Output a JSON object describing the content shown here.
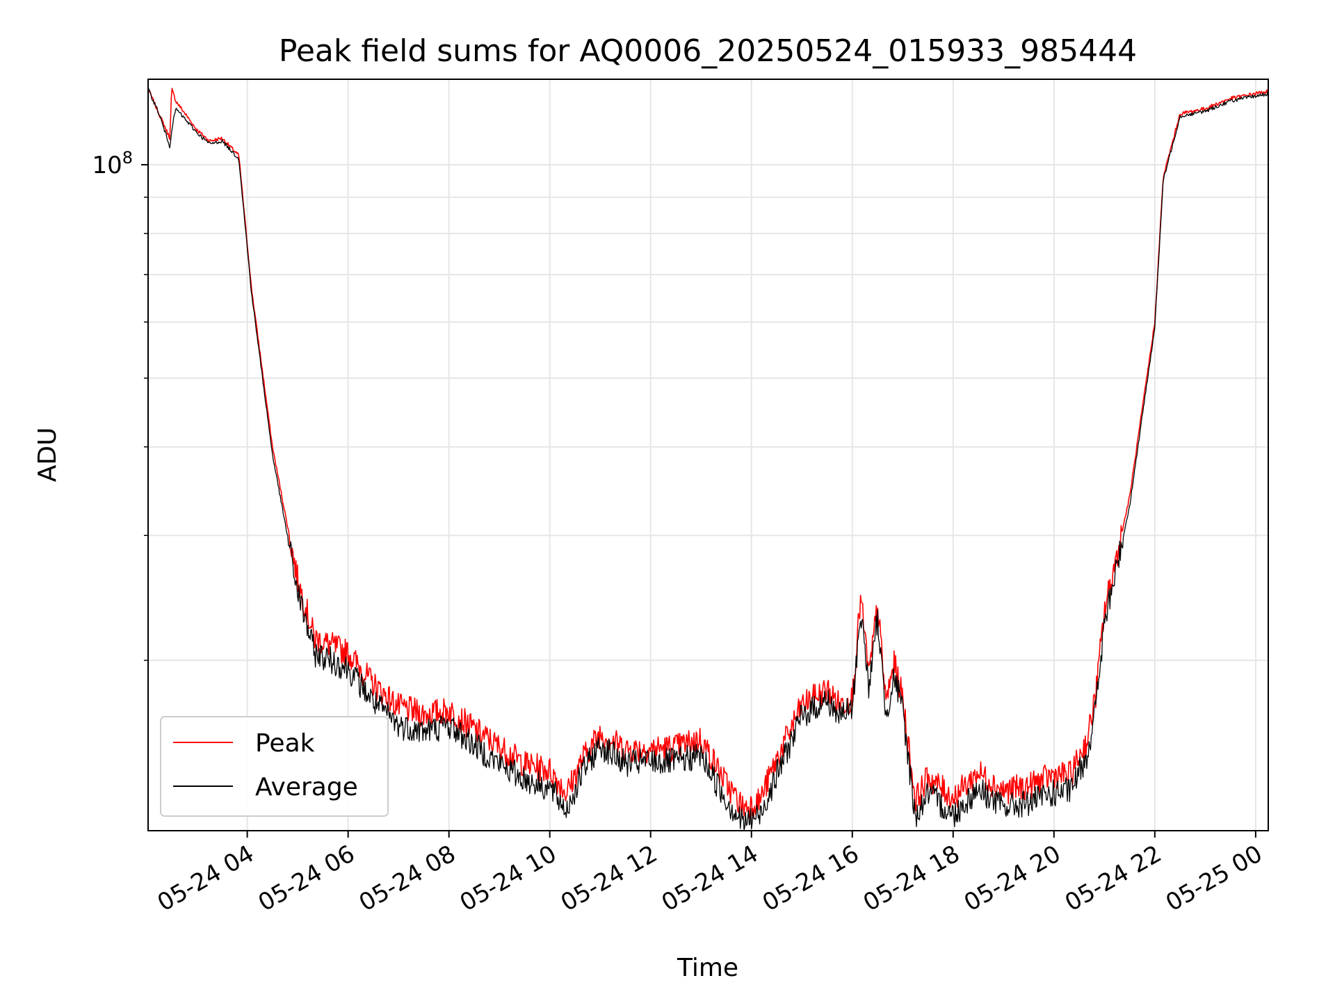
{
  "chart_data": {
    "type": "line",
    "title": "Peak field sums for AQ0006_20250524_015933_985444",
    "xlabel": "Time",
    "ylabel": "ADU",
    "x_axis_type": "datetime",
    "x_tick_labels": [
      "05-24 04",
      "05-24 06",
      "05-24 08",
      "05-24 10",
      "05-24 12",
      "05-24 14",
      "05-24 16",
      "05-24 18",
      "05-24 20",
      "05-24 22",
      "05-25 00"
    ],
    "x_tick_values": [
      "2025-05-24T04:00",
      "2025-05-24T06:00",
      "2025-05-24T08:00",
      "2025-05-24T10:00",
      "2025-05-24T12:00",
      "2025-05-24T14:00",
      "2025-05-24T16:00",
      "2025-05-24T18:00",
      "2025-05-24T20:00",
      "2025-05-24T22:00",
      "2025-05-25T00:00"
    ],
    "xlim": [
      "2025-05-24T02:02",
      "2025-05-25T00:15"
    ],
    "y_scale": "log",
    "ylim": [
      11500000,
      132000000
    ],
    "y_major_ticks": [
      {
        "value": 100000000,
        "base": "10",
        "exponent": "8"
      }
    ],
    "y_minor_ticks": [
      20000000,
      30000000,
      40000000,
      50000000,
      60000000,
      70000000,
      80000000,
      90000000
    ],
    "grid": true,
    "legend_position": "lower left",
    "x": [
      "2025-05-24T02:02",
      "2025-05-24T02:15",
      "2025-05-24T02:28",
      "2025-05-24T02:30",
      "2025-05-24T02:35",
      "2025-05-24T03:00",
      "2025-05-24T03:15",
      "2025-05-24T03:30",
      "2025-05-24T03:50",
      "2025-05-24T04:05",
      "2025-05-24T04:30",
      "2025-05-24T05:00",
      "2025-05-24T05:20",
      "2025-05-24T05:40",
      "2025-05-24T06:00",
      "2025-05-24T06:30",
      "2025-05-24T07:00",
      "2025-05-24T07:30",
      "2025-05-24T08:00",
      "2025-05-24T08:30",
      "2025-05-24T09:00",
      "2025-05-24T09:30",
      "2025-05-24T10:00",
      "2025-05-24T10:20",
      "2025-05-24T10:40",
      "2025-05-24T11:00",
      "2025-05-24T11:30",
      "2025-05-24T12:00",
      "2025-05-24T12:30",
      "2025-05-24T13:00",
      "2025-05-24T13:30",
      "2025-05-24T13:50",
      "2025-05-24T14:10",
      "2025-05-24T14:30",
      "2025-05-24T15:00",
      "2025-05-24T15:30",
      "2025-05-24T15:45",
      "2025-05-24T16:00",
      "2025-05-24T16:10",
      "2025-05-24T16:20",
      "2025-05-24T16:30",
      "2025-05-24T16:40",
      "2025-05-24T16:50",
      "2025-05-24T17:00",
      "2025-05-24T17:15",
      "2025-05-24T17:30",
      "2025-05-24T18:00",
      "2025-05-24T18:30",
      "2025-05-24T19:00",
      "2025-05-24T19:30",
      "2025-05-24T20:00",
      "2025-05-24T20:20",
      "2025-05-24T20:40",
      "2025-05-24T20:50",
      "2025-05-24T21:00",
      "2025-05-24T21:10",
      "2025-05-24T21:30",
      "2025-05-24T22:00",
      "2025-05-24T22:10",
      "2025-05-24T22:30",
      "2025-05-24T23:00",
      "2025-05-24T23:30",
      "2025-05-24T23:45",
      "2025-05-25T00:00",
      "2025-05-25T00:15"
    ],
    "series": [
      {
        "name": "Peak",
        "color": "#ff0000",
        "values": [
          128000000,
          118000000,
          109000000,
          128000000,
          123000000,
          112000000,
          108000000,
          109000000,
          103000000,
          67000000,
          40000000,
          26000000,
          21500000,
          21000000,
          20500000,
          18500000,
          17200000,
          16800000,
          17000000,
          16000000,
          15100000,
          14300000,
          14000000,
          13000000,
          14600000,
          15800000,
          15000000,
          15000000,
          15100000,
          15500000,
          13400000,
          12400000,
          12700000,
          14500000,
          17300000,
          18200000,
          17300000,
          17700000,
          24500000,
          19000000,
          24000000,
          17500000,
          19800000,
          17700000,
          12700000,
          13700000,
          12800000,
          13900000,
          13100000,
          13300000,
          13800000,
          13800000,
          15500000,
          18000000,
          23500000,
          26500000,
          34000000,
          60000000,
          96000000,
          118000000,
          120000000,
          124000000,
          125000000,
          126000000,
          127000000
        ]
      },
      {
        "name": "Average",
        "color": "#000000",
        "values": [
          128000000,
          118000000,
          106000000,
          112000000,
          120000000,
          111000000,
          107000000,
          108000000,
          102000000,
          66000000,
          39000000,
          25000000,
          20500000,
          20000000,
          19500000,
          17500000,
          16200000,
          15900000,
          16200000,
          15200000,
          14300000,
          13600000,
          13200000,
          12300000,
          14000000,
          15200000,
          14300000,
          14400000,
          14400000,
          14700000,
          12700000,
          11800000,
          12100000,
          13800000,
          16700000,
          17600000,
          16700000,
          17100000,
          23500000,
          18300000,
          23000000,
          16800000,
          19000000,
          17000000,
          12000000,
          13000000,
          12100000,
          13200000,
          12400000,
          12600000,
          13000000,
          13100000,
          14800000,
          17300000,
          22500000,
          25500000,
          33000000,
          59000000,
          95000000,
          117000000,
          119000000,
          123000000,
          124000000,
          125000000,
          126000000
        ]
      }
    ]
  }
}
